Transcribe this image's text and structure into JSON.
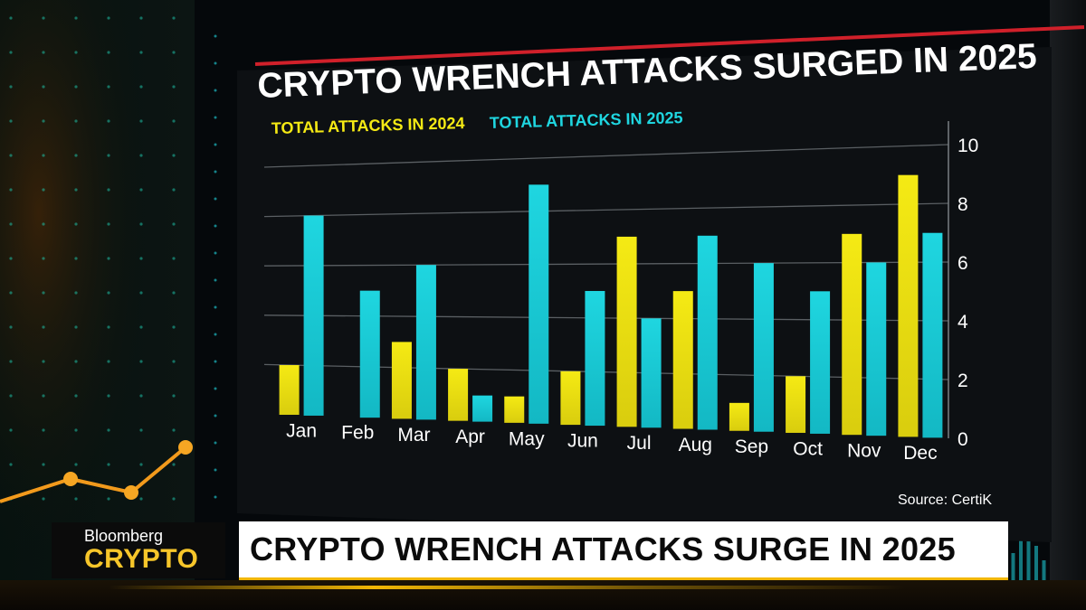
{
  "chart_data": {
    "type": "bar",
    "title": "CRYPTO WRENCH ATTACKS SURGED IN 2025",
    "categories": [
      "Jan",
      "Feb",
      "Mar",
      "Apr",
      "May",
      "Jun",
      "Jul",
      "Aug",
      "Sep",
      "Oct",
      "Nov",
      "Dec"
    ],
    "series": [
      {
        "name": "TOTAL ATTACKS IN 2024",
        "color": "#f5ea14",
        "values": [
          2,
          0,
          3,
          2,
          1,
          2,
          7,
          5,
          1,
          2,
          7,
          9
        ]
      },
      {
        "name": "TOTAL ATTACKS IN 2025",
        "color": "#1fd6e0",
        "values": [
          8,
          5,
          6,
          1,
          9,
          5,
          4,
          7,
          6,
          5,
          6,
          7
        ]
      }
    ],
    "yticks": [
      "0",
      "2",
      "4",
      "6",
      "8",
      "10"
    ],
    "ylim": [
      0,
      10
    ],
    "grid": true,
    "legend_position": "top-left",
    "y_axis_side": "right",
    "source": "Source: CertiK"
  },
  "lower_third": {
    "brand_top": "Bloomberg",
    "brand_bottom": "CRYPTO",
    "headline": "CRYPTO WRENCH ATTACKS SURGE IN 2025"
  },
  "colors": {
    "accent_red": "#d0202a",
    "accent_gold": "#f2b705",
    "bar_2024": "#f5ea14",
    "bar_2025": "#1fd6e0"
  }
}
